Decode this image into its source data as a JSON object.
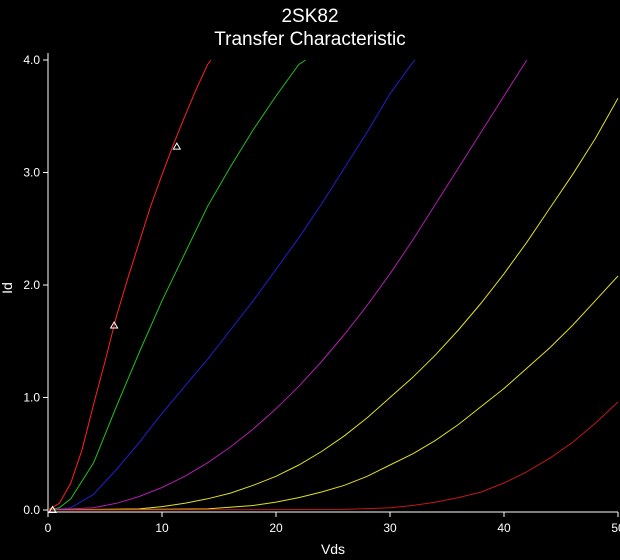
{
  "chart_data": {
    "type": "line",
    "title": "2SK82",
    "subtitle": "Transfer Characteristic",
    "xlabel": "Vds",
    "ylabel": "Id",
    "xlim": [
      0,
      50
    ],
    "ylim": [
      0,
      4
    ],
    "x_ticks": [
      "0",
      "10",
      "20",
      "30",
      "40",
      "50"
    ],
    "y_ticks": [
      "0.0",
      "1.0",
      "2.0",
      "3.0",
      "4.0"
    ],
    "grid": false,
    "legend": "none",
    "series": [
      {
        "color": "#ff2020",
        "x": [
          0,
          1,
          2,
          3,
          4,
          5,
          6,
          7,
          8,
          9,
          10,
          11,
          12,
          13,
          14,
          14.3
        ],
        "y": [
          0,
          0.06,
          0.24,
          0.54,
          0.94,
          1.32,
          1.72,
          2.06,
          2.38,
          2.7,
          2.98,
          3.25,
          3.5,
          3.74,
          3.96,
          4.0
        ]
      },
      {
        "color": "#20c020",
        "x": [
          0,
          1,
          2,
          4,
          6,
          8,
          10,
          12,
          14,
          16,
          18,
          20,
          22,
          22.6
        ],
        "y": [
          0,
          0.02,
          0.1,
          0.42,
          0.92,
          1.4,
          1.86,
          2.28,
          2.7,
          3.05,
          3.38,
          3.68,
          3.96,
          4.0
        ]
      },
      {
        "color": "#2020d0",
        "x": [
          0,
          2,
          4,
          6,
          8,
          10,
          12,
          14,
          16,
          18,
          20,
          22,
          24,
          26,
          28,
          30,
          32,
          32.2
        ],
        "y": [
          0,
          0.02,
          0.14,
          0.36,
          0.6,
          0.86,
          1.1,
          1.34,
          1.6,
          1.86,
          2.14,
          2.42,
          2.72,
          3.04,
          3.36,
          3.7,
          3.98,
          4.0
        ]
      },
      {
        "color": "#b020b0",
        "x": [
          0,
          4,
          6,
          8,
          10,
          12,
          14,
          16,
          18,
          20,
          22,
          24,
          26,
          28,
          30,
          32,
          34,
          36,
          38,
          40,
          42
        ],
        "y": [
          0,
          0.02,
          0.06,
          0.12,
          0.2,
          0.3,
          0.42,
          0.56,
          0.72,
          0.9,
          1.1,
          1.32,
          1.56,
          1.82,
          2.1,
          2.4,
          2.72,
          3.04,
          3.36,
          3.68,
          4.0
        ]
      },
      {
        "color": "#e0e020",
        "x": [
          0,
          8,
          10,
          12,
          14,
          16,
          18,
          20,
          22,
          24,
          26,
          28,
          30,
          32,
          34,
          36,
          38,
          40,
          42,
          44,
          46,
          48,
          50
        ],
        "y": [
          0,
          0.01,
          0.03,
          0.06,
          0.1,
          0.15,
          0.22,
          0.3,
          0.4,
          0.52,
          0.66,
          0.82,
          1.0,
          1.18,
          1.38,
          1.6,
          1.84,
          2.1,
          2.38,
          2.68,
          2.98,
          3.3,
          3.66
        ]
      },
      {
        "color": "#e0e020",
        "x": [
          0,
          14,
          18,
          20,
          22,
          24,
          26,
          28,
          30,
          32,
          34,
          36,
          38,
          40,
          42,
          44,
          46,
          48,
          50
        ],
        "y": [
          0,
          0.01,
          0.04,
          0.07,
          0.11,
          0.16,
          0.22,
          0.3,
          0.4,
          0.5,
          0.62,
          0.76,
          0.92,
          1.08,
          1.26,
          1.44,
          1.64,
          1.86,
          2.08
        ]
      },
      {
        "color": "#c01818",
        "x": [
          0,
          26,
          30,
          32,
          34,
          36,
          38,
          40,
          42,
          44,
          46,
          48,
          50
        ],
        "y": [
          0,
          0.005,
          0.02,
          0.04,
          0.07,
          0.11,
          0.16,
          0.24,
          0.34,
          0.46,
          0.6,
          0.77,
          0.96
        ]
      }
    ],
    "markers": [
      {
        "x": 0.4,
        "y": 0.0
      },
      {
        "x": 5.8,
        "y": 1.64
      },
      {
        "x": 11.3,
        "y": 3.23
      }
    ]
  }
}
